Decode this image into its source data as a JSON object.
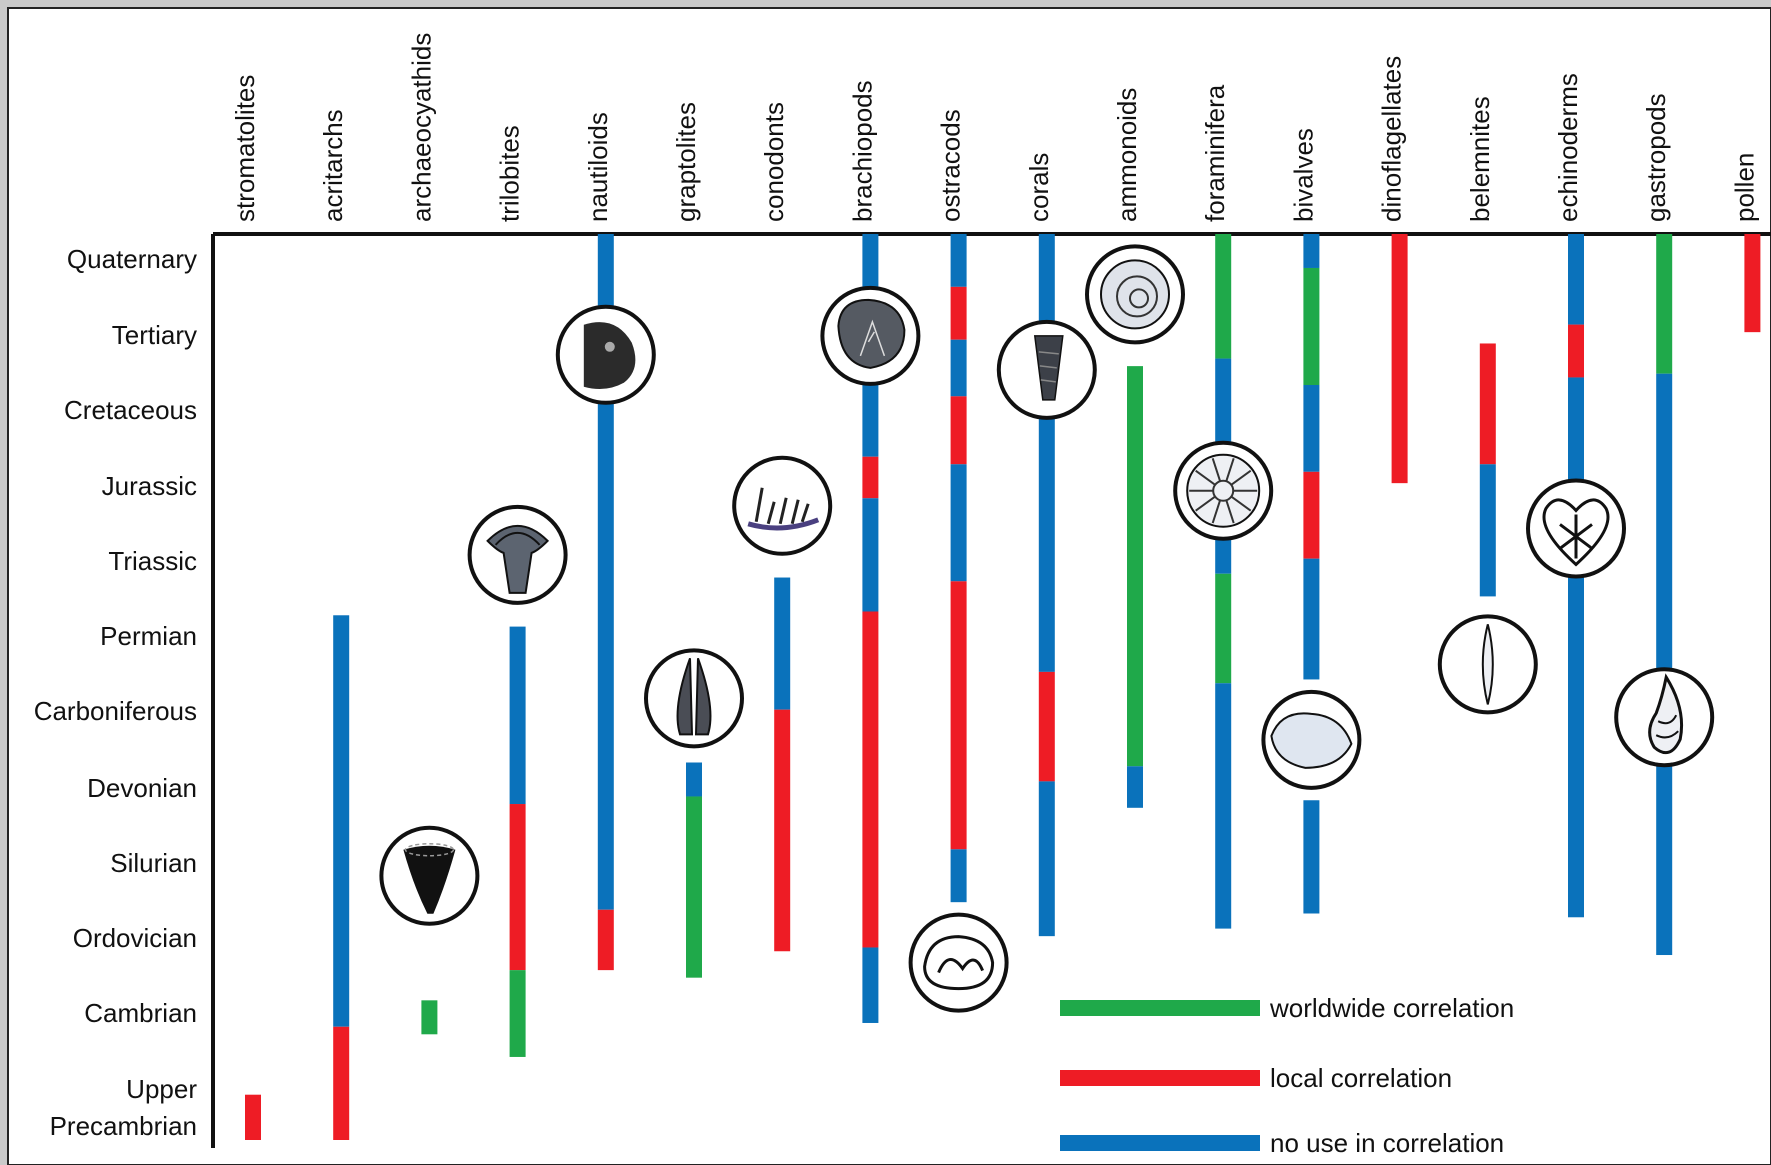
{
  "chart_data": {
    "type": "range",
    "title": "",
    "colors": {
      "worldwide": "#1fa94a",
      "local": "#ee1c25",
      "none": "#0a72bb"
    },
    "legend": [
      {
        "key": "worldwide",
        "label": "worldwide correlation"
      },
      {
        "key": "local",
        "label": "local correlation"
      },
      {
        "key": "none",
        "label": "no use in correlation"
      }
    ],
    "periods": [
      "Quaternary",
      "Tertiary",
      "Cretaceous",
      "Jurassic",
      "Triassic",
      "Permian",
      "Carboniferous",
      "Devonian",
      "Silurian",
      "Ordovician",
      "Cambrian",
      "Upper Precambrian"
    ],
    "groups": [
      {
        "name": "stromatolites",
        "segments": [
          {
            "from": 11.4,
            "to": 12.0,
            "type": "local"
          }
        ]
      },
      {
        "name": "acritarchs",
        "segments": [
          {
            "from": 5.05,
            "to": 10.5,
            "type": "none"
          },
          {
            "from": 10.5,
            "to": 12.0,
            "type": "local"
          }
        ]
      },
      {
        "name": "archaeocyathids",
        "segments": [
          {
            "from": 10.15,
            "to": 10.6,
            "type": "worldwide"
          }
        ]
      },
      {
        "name": "trilobites",
        "segments": [
          {
            "from": 5.2,
            "to": 7.55,
            "type": "none"
          },
          {
            "from": 7.55,
            "to": 9.75,
            "type": "local"
          },
          {
            "from": 9.75,
            "to": 10.9,
            "type": "worldwide"
          }
        ]
      },
      {
        "name": "nautiloids",
        "segments": [
          {
            "from": 0,
            "to": 8.95,
            "type": "none"
          },
          {
            "from": 8.95,
            "to": 9.75,
            "type": "local"
          }
        ]
      },
      {
        "name": "graptolites",
        "segments": [
          {
            "from": 7.0,
            "to": 7.45,
            "type": "none"
          },
          {
            "from": 7.45,
            "to": 9.85,
            "type": "worldwide"
          }
        ]
      },
      {
        "name": "conodonts",
        "segments": [
          {
            "from": 4.55,
            "to": 6.3,
            "type": "none"
          },
          {
            "from": 6.3,
            "to": 9.5,
            "type": "local"
          }
        ]
      },
      {
        "name": "brachiopods",
        "segments": [
          {
            "from": 0,
            "to": 2.95,
            "type": "none"
          },
          {
            "from": 2.95,
            "to": 3.5,
            "type": "local"
          },
          {
            "from": 3.5,
            "to": 5.0,
            "type": "none"
          },
          {
            "from": 5.0,
            "to": 9.45,
            "type": "local"
          },
          {
            "from": 9.45,
            "to": 10.45,
            "type": "none"
          }
        ]
      },
      {
        "name": "ostracods",
        "segments": [
          {
            "from": 0,
            "to": 0.7,
            "type": "none"
          },
          {
            "from": 0.7,
            "to": 1.4,
            "type": "local"
          },
          {
            "from": 1.4,
            "to": 2.15,
            "type": "none"
          },
          {
            "from": 2.15,
            "to": 3.05,
            "type": "local"
          },
          {
            "from": 3.05,
            "to": 4.6,
            "type": "none"
          },
          {
            "from": 4.6,
            "to": 8.15,
            "type": "local"
          },
          {
            "from": 8.15,
            "to": 8.85,
            "type": "none"
          }
        ]
      },
      {
        "name": "corals",
        "segments": [
          {
            "from": 0,
            "to": 5.8,
            "type": "none"
          },
          {
            "from": 5.8,
            "to": 7.25,
            "type": "local"
          },
          {
            "from": 7.25,
            "to": 9.3,
            "type": "none"
          }
        ]
      },
      {
        "name": "ammonoids",
        "segments": [
          {
            "from": 1.75,
            "to": 7.05,
            "type": "worldwide"
          },
          {
            "from": 7.05,
            "to": 7.6,
            "type": "none"
          }
        ]
      },
      {
        "name": "foraminifera",
        "segments": [
          {
            "from": 0,
            "to": 1.65,
            "type": "worldwide"
          },
          {
            "from": 1.65,
            "to": 4.5,
            "type": "none"
          },
          {
            "from": 4.5,
            "to": 5.95,
            "type": "worldwide"
          },
          {
            "from": 5.95,
            "to": 9.2,
            "type": "none"
          }
        ]
      },
      {
        "name": "bivalves",
        "segments": [
          {
            "from": 0,
            "to": 0.45,
            "type": "none"
          },
          {
            "from": 0.45,
            "to": 2.0,
            "type": "worldwide"
          },
          {
            "from": 2.0,
            "to": 3.15,
            "type": "none"
          },
          {
            "from": 3.15,
            "to": 4.3,
            "type": "local"
          },
          {
            "from": 4.3,
            "to": 5.9,
            "type": "none"
          },
          {
            "from": 7.5,
            "to": 9.0,
            "type": "none"
          }
        ]
      },
      {
        "name": "dinoflagellates",
        "segments": [
          {
            "from": 0,
            "to": 3.3,
            "type": "local"
          }
        ]
      },
      {
        "name": "belemnites",
        "segments": [
          {
            "from": 1.45,
            "to": 3.05,
            "type": "local"
          },
          {
            "from": 3.05,
            "to": 4.8,
            "type": "none"
          }
        ]
      },
      {
        "name": "echinoderms",
        "segments": [
          {
            "from": 0,
            "to": 1.2,
            "type": "none"
          },
          {
            "from": 1.2,
            "to": 1.9,
            "type": "local"
          },
          {
            "from": 1.9,
            "to": 9.05,
            "type": "none"
          }
        ]
      },
      {
        "name": "gastropods",
        "segments": [
          {
            "from": 0,
            "to": 1.85,
            "type": "worldwide"
          },
          {
            "from": 1.85,
            "to": 9.55,
            "type": "none"
          }
        ]
      },
      {
        "name": "pollen",
        "segments": [
          {
            "from": 0,
            "to": 1.3,
            "type": "local"
          }
        ]
      }
    ],
    "fossils": [
      {
        "icon": "nautiloid-icon",
        "group": "nautiloids",
        "at": 1.6
      },
      {
        "icon": "brachiopod-icon",
        "group": "brachiopods",
        "at": 1.35
      },
      {
        "icon": "coral-icon",
        "group": "corals",
        "at": 1.8
      },
      {
        "icon": "ammonoid-icon",
        "group": "ammonoids",
        "at": 0.8
      },
      {
        "icon": "foraminifera-icon",
        "group": "foraminifera",
        "at": 3.4
      },
      {
        "icon": "conodont-icon",
        "group": "conodonts",
        "at": 3.6
      },
      {
        "icon": "trilobite-icon",
        "group": "trilobites",
        "at": 4.25
      },
      {
        "icon": "echinoderm-icon",
        "group": "echinoderms",
        "at": 3.9
      },
      {
        "icon": "belemnite-icon",
        "group": "belemnites",
        "at": 5.7
      },
      {
        "icon": "graptolite-icon",
        "group": "graptolites",
        "at": 6.15
      },
      {
        "icon": "bivalve-icon",
        "group": "bivalves",
        "at": 6.7
      },
      {
        "icon": "gastropod-icon",
        "group": "gastropods",
        "at": 6.4
      },
      {
        "icon": "archaeocyathid-icon",
        "group": "archaeocyathids",
        "at": 8.5
      },
      {
        "icon": "ostracod-icon",
        "group": "ostracods",
        "at": 9.65
      }
    ]
  }
}
